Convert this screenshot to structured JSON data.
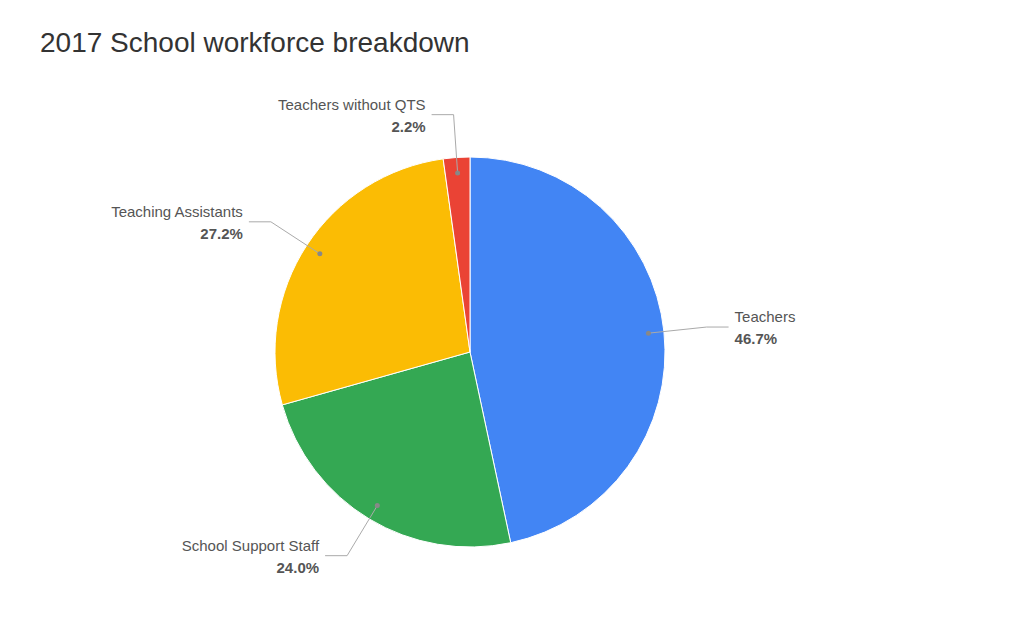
{
  "chart_data": {
    "type": "pie",
    "title": "2017 School workforce breakdown",
    "categories": [
      "Teachers",
      "School Support Staff",
      "Teaching Assistants",
      "Teachers without QTS"
    ],
    "values": [
      46.7,
      24.0,
      27.2,
      2.2
    ],
    "value_labels": [
      "46.7%",
      "24.0%",
      "27.2%",
      "2.2%"
    ],
    "colors": [
      "#4285F4",
      "#34A853",
      "#FBBC04",
      "#EA4335"
    ],
    "data_labels": true
  }
}
